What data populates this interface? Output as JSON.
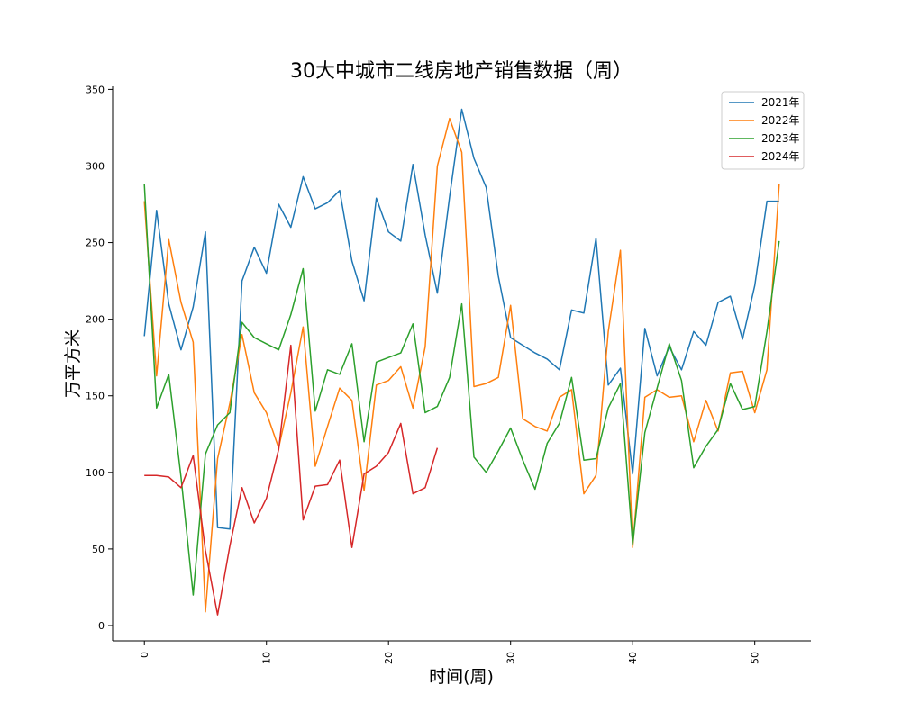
{
  "chart_data": {
    "type": "line",
    "title": "30大中城市二线房地产销售数据（周）",
    "xlabel": "时间(周)",
    "ylabel": "万平方米",
    "xlim": [
      -2.6,
      54.6
    ],
    "ylim": [
      -10,
      352
    ],
    "xticks": [
      0,
      10,
      20,
      30,
      40,
      50
    ],
    "yticks": [
      0,
      50,
      100,
      150,
      200,
      250,
      300,
      350
    ],
    "grid": false,
    "legend_position": "top-right",
    "series": [
      {
        "name": "2021年",
        "color": "#1f77b4",
        "values": [
          189,
          271,
          210,
          180,
          208,
          257,
          64,
          63,
          225,
          247,
          230,
          275,
          260,
          293,
          272,
          276,
          284,
          238,
          212,
          279,
          257,
          251,
          301,
          255,
          217,
          280,
          337,
          305,
          286,
          228,
          188,
          183,
          178,
          174,
          167,
          206,
          204,
          253,
          157,
          168,
          99,
          194,
          163,
          182,
          167,
          192,
          183,
          211,
          215,
          187,
          222,
          277,
          277
        ]
      },
      {
        "name": "2022年",
        "color": "#ff7f0e",
        "values": [
          277,
          163,
          252,
          211,
          185,
          9,
          109,
          145,
          190,
          152,
          139,
          116,
          152,
          195,
          104,
          130,
          155,
          147,
          88,
          157,
          160,
          169,
          142,
          182,
          300,
          331,
          309,
          156,
          158,
          162,
          209,
          135,
          130,
          127,
          149,
          154,
          86,
          98,
          192,
          245,
          51,
          149,
          154,
          149,
          150,
          120,
          147,
          127,
          165,
          166,
          139,
          167,
          288
        ]
      },
      {
        "name": "2023年",
        "color": "#2ca02c",
        "values": [
          288,
          142,
          164,
          97,
          20,
          112,
          131,
          139,
          198,
          188,
          184,
          180,
          203,
          233,
          140,
          167,
          164,
          184,
          120,
          172,
          175,
          178,
          197,
          139,
          143,
          162,
          210,
          110,
          100,
          114,
          129,
          108,
          89,
          119,
          132,
          162,
          108,
          109,
          142,
          158,
          53,
          126,
          155,
          184,
          160,
          103,
          117,
          128,
          158,
          141,
          143,
          192,
          251
        ]
      },
      {
        "name": "2024年",
        "color": "#d62728",
        "values": [
          98,
          98,
          97,
          90,
          111,
          49,
          7,
          52,
          90,
          67,
          83,
          115,
          183,
          69,
          91,
          92,
          108,
          51,
          99,
          104,
          113,
          132,
          86,
          90,
          116
        ]
      }
    ]
  }
}
